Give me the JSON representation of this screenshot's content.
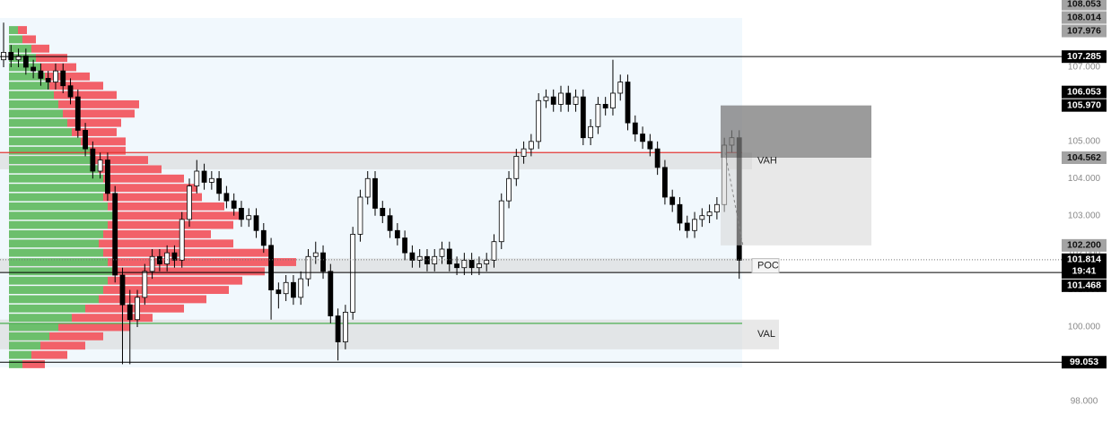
{
  "chart_data": {
    "type": "candlestick",
    "ylim": [
      97.2,
      108.81
    ],
    "yticks": [
      {
        "value": 98,
        "label": "98.000"
      },
      {
        "value": 99,
        "label": "99.000"
      },
      {
        "value": 100,
        "label": "100.000"
      },
      {
        "value": 101,
        "label": "101.000"
      },
      {
        "value": 102,
        "label": "102.000"
      },
      {
        "value": 103,
        "label": "103.000"
      },
      {
        "value": 104,
        "label": "104.000"
      },
      {
        "value": 105,
        "label": "105.000"
      },
      {
        "value": 106,
        "label": "106.000"
      },
      {
        "value": 107,
        "label": "107.000"
      }
    ],
    "up_color": "#ffffff",
    "down_color": "#000000",
    "candles": [
      [
        107.2,
        108.2,
        107.0,
        107.4
      ],
      [
        107.4,
        107.6,
        107.0,
        107.2
      ],
      [
        107.2,
        107.5,
        107.0,
        107.3
      ],
      [
        107.3,
        107.5,
        106.8,
        107.0
      ],
      [
        107.0,
        107.2,
        106.7,
        106.9
      ],
      [
        106.9,
        107.1,
        106.5,
        106.7
      ],
      [
        106.7,
        106.9,
        106.4,
        106.6
      ],
      [
        106.6,
        107.1,
        106.4,
        106.9
      ],
      [
        106.9,
        107.1,
        106.3,
        106.5
      ],
      [
        106.5,
        106.7,
        106.0,
        106.2
      ],
      [
        106.2,
        106.4,
        105.1,
        105.3
      ],
      [
        105.3,
        105.5,
        104.6,
        104.8
      ],
      [
        104.8,
        105.0,
        104.0,
        104.2
      ],
      [
        104.2,
        104.7,
        104.0,
        104.5
      ],
      [
        104.5,
        104.7,
        103.4,
        103.6
      ],
      [
        103.6,
        103.8,
        101.2,
        101.4
      ],
      [
        101.4,
        101.6,
        99.0,
        100.6
      ],
      [
        100.6,
        101.0,
        99.0,
        100.2
      ],
      [
        100.2,
        101.0,
        100.0,
        100.8
      ],
      [
        100.8,
        101.7,
        100.6,
        101.5
      ],
      [
        101.5,
        102.1,
        101.3,
        101.9
      ],
      [
        101.9,
        102.1,
        101.5,
        101.7
      ],
      [
        101.7,
        102.2,
        101.5,
        102.0
      ],
      [
        102.0,
        102.2,
        101.6,
        101.8
      ],
      [
        101.8,
        103.1,
        101.6,
        102.9
      ],
      [
        102.9,
        104.0,
        102.7,
        103.8
      ],
      [
        103.8,
        104.5,
        103.6,
        104.2
      ],
      [
        104.2,
        104.4,
        103.7,
        103.9
      ],
      [
        103.9,
        104.2,
        103.7,
        104.0
      ],
      [
        104.0,
        104.2,
        103.4,
        103.6
      ],
      [
        103.6,
        103.8,
        103.2,
        103.4
      ],
      [
        103.4,
        103.6,
        103.0,
        103.2
      ],
      [
        103.2,
        103.4,
        102.7,
        102.9
      ],
      [
        102.9,
        103.2,
        102.7,
        103.0
      ],
      [
        103.0,
        103.2,
        102.4,
        102.6
      ],
      [
        102.6,
        102.8,
        102.0,
        102.2
      ],
      [
        102.2,
        102.4,
        100.2,
        101.0
      ],
      [
        101.0,
        101.2,
        100.5,
        100.9
      ],
      [
        100.9,
        101.4,
        100.7,
        101.2
      ],
      [
        101.2,
        101.4,
        100.6,
        100.8
      ],
      [
        100.8,
        101.5,
        100.6,
        101.3
      ],
      [
        101.3,
        102.1,
        101.1,
        101.9
      ],
      [
        101.9,
        102.3,
        101.7,
        102.0
      ],
      [
        102.0,
        102.2,
        101.3,
        101.5
      ],
      [
        101.5,
        101.7,
        100.1,
        100.3
      ],
      [
        100.3,
        100.5,
        99.1,
        99.6
      ],
      [
        99.6,
        100.6,
        99.4,
        100.4
      ],
      [
        100.4,
        102.7,
        100.2,
        102.5
      ],
      [
        102.5,
        103.7,
        102.3,
        103.5
      ],
      [
        103.5,
        104.2,
        103.3,
        104.0
      ],
      [
        104.0,
        104.2,
        103.0,
        103.2
      ],
      [
        103.2,
        103.4,
        102.8,
        103.0
      ],
      [
        103.0,
        103.2,
        102.4,
        102.6
      ],
      [
        102.6,
        102.8,
        102.2,
        102.4
      ],
      [
        102.4,
        102.6,
        101.8,
        102.0
      ],
      [
        102.0,
        102.2,
        101.6,
        101.8
      ],
      [
        101.8,
        102.1,
        101.6,
        101.9
      ],
      [
        101.9,
        102.1,
        101.5,
        101.7
      ],
      [
        101.7,
        102.1,
        101.5,
        101.9
      ],
      [
        101.9,
        102.3,
        101.7,
        102.1
      ],
      [
        102.1,
        102.3,
        101.5,
        101.7
      ],
      [
        101.7,
        101.9,
        101.4,
        101.6
      ],
      [
        101.6,
        102.0,
        101.4,
        101.8
      ],
      [
        101.8,
        102.0,
        101.4,
        101.6
      ],
      [
        101.6,
        101.9,
        101.4,
        101.7
      ],
      [
        101.7,
        102.0,
        101.5,
        101.8
      ],
      [
        101.8,
        102.5,
        101.6,
        102.3
      ],
      [
        102.3,
        103.6,
        102.1,
        103.4
      ],
      [
        103.4,
        104.2,
        103.2,
        104.0
      ],
      [
        104.0,
        104.8,
        103.8,
        104.6
      ],
      [
        104.6,
        105.0,
        104.4,
        104.8
      ],
      [
        104.8,
        105.2,
        104.6,
        105.0
      ],
      [
        105.0,
        106.3,
        104.8,
        106.1
      ],
      [
        106.1,
        106.4,
        105.9,
        106.2
      ],
      [
        106.2,
        106.4,
        105.8,
        106.0
      ],
      [
        106.0,
        106.5,
        105.8,
        106.3
      ],
      [
        106.3,
        106.5,
        105.8,
        106.0
      ],
      [
        106.0,
        106.4,
        105.8,
        106.2
      ],
      [
        106.2,
        106.4,
        104.9,
        105.1
      ],
      [
        105.1,
        105.6,
        104.9,
        105.4
      ],
      [
        105.4,
        106.2,
        105.2,
        106.0
      ],
      [
        106.0,
        106.2,
        105.7,
        105.9
      ],
      [
        105.9,
        107.2,
        105.7,
        106.3
      ],
      [
        106.3,
        106.8,
        106.1,
        106.6
      ],
      [
        106.6,
        106.8,
        105.3,
        105.5
      ],
      [
        105.5,
        105.7,
        105.0,
        105.2
      ],
      [
        105.2,
        105.4,
        104.8,
        105.0
      ],
      [
        105.0,
        105.2,
        104.6,
        104.8
      ],
      [
        104.8,
        105.0,
        104.1,
        104.3
      ],
      [
        104.3,
        104.5,
        103.3,
        103.5
      ],
      [
        103.5,
        103.7,
        103.1,
        103.3
      ],
      [
        103.3,
        103.5,
        102.6,
        102.8
      ],
      [
        102.8,
        103.0,
        102.4,
        102.6
      ],
      [
        102.6,
        103.1,
        102.4,
        102.9
      ],
      [
        102.9,
        103.2,
        102.7,
        103.0
      ],
      [
        103.0,
        103.3,
        102.8,
        103.1
      ],
      [
        103.1,
        103.5,
        102.9,
        103.3
      ],
      [
        103.3,
        105.1,
        103.1,
        104.9
      ],
      [
        104.9,
        105.3,
        104.7,
        105.1
      ],
      [
        105.1,
        105.3,
        101.3,
        101.8
      ]
    ],
    "volume_profile": {
      "xlim": [
        0,
        820
      ],
      "up_color": "#6cbf6c",
      "down_color": "#f26169",
      "prices": [
        99.0,
        99.25,
        99.5,
        99.75,
        100.0,
        100.25,
        100.5,
        100.75,
        101.0,
        101.25,
        101.5,
        101.75,
        102.0,
        102.25,
        102.5,
        102.75,
        103.0,
        103.25,
        103.5,
        103.75,
        104.0,
        104.25,
        104.5,
        104.75,
        105.0,
        105.25,
        105.5,
        105.75,
        106.0,
        106.25,
        106.5,
        106.75,
        107.0,
        107.25,
        107.5,
        107.75,
        108.0
      ],
      "up": [
        15,
        25,
        35,
        45,
        55,
        70,
        85,
        100,
        105,
        110,
        115,
        110,
        105,
        100,
        105,
        110,
        120,
        110,
        105,
        110,
        105,
        100,
        95,
        90,
        80,
        70,
        65,
        60,
        55,
        50,
        45,
        40,
        35,
        30,
        25,
        15,
        10
      ],
      "down": [
        25,
        40,
        50,
        60,
        80,
        90,
        110,
        120,
        140,
        150,
        170,
        210,
        190,
        150,
        120,
        140,
        140,
        130,
        110,
        100,
        90,
        70,
        60,
        40,
        50,
        50,
        60,
        80,
        90,
        70,
        60,
        50,
        40,
        35,
        20,
        15,
        10
      ]
    },
    "zones": [
      {
        "label": "VAH",
        "range": [
          104.25,
          104.7
        ],
        "line": 104.7,
        "line_color": "#e53935"
      },
      {
        "label": "POC",
        "range": [
          101.45,
          101.85
        ]
      },
      {
        "label": "VAL",
        "range": [
          99.4,
          100.2
        ],
        "line": 100.1,
        "line_color": "#4caf50"
      }
    ],
    "price_labels": [
      {
        "value": 108.053,
        "label": "108.053",
        "style": "gray"
      },
      {
        "value": 108.014,
        "label": "108.014",
        "style": "gray"
      },
      {
        "value": 107.976,
        "label": "107.976",
        "style": "gray"
      },
      {
        "value": 107.285,
        "label": "107.285",
        "style": "black",
        "line": "solid"
      },
      {
        "value": 106.053,
        "label": "106.053",
        "style": "black"
      },
      {
        "value": 105.97,
        "label": "105.970",
        "style": "black",
        "role": "target"
      },
      {
        "value": 104.562,
        "label": "104.562",
        "style": "gray",
        "role": "entry"
      },
      {
        "value": 102.2,
        "label": "102.200",
        "style": "gray",
        "role": "stop"
      },
      {
        "value": 101.814,
        "label": "101.814",
        "style": "black",
        "countdown": "19:41",
        "line": "dotted"
      },
      {
        "value": 101.468,
        "label": "101.468",
        "style": "black",
        "line": "solid"
      },
      {
        "value": 99.053,
        "label": "99.053",
        "style": "black",
        "line": "solid"
      }
    ]
  }
}
